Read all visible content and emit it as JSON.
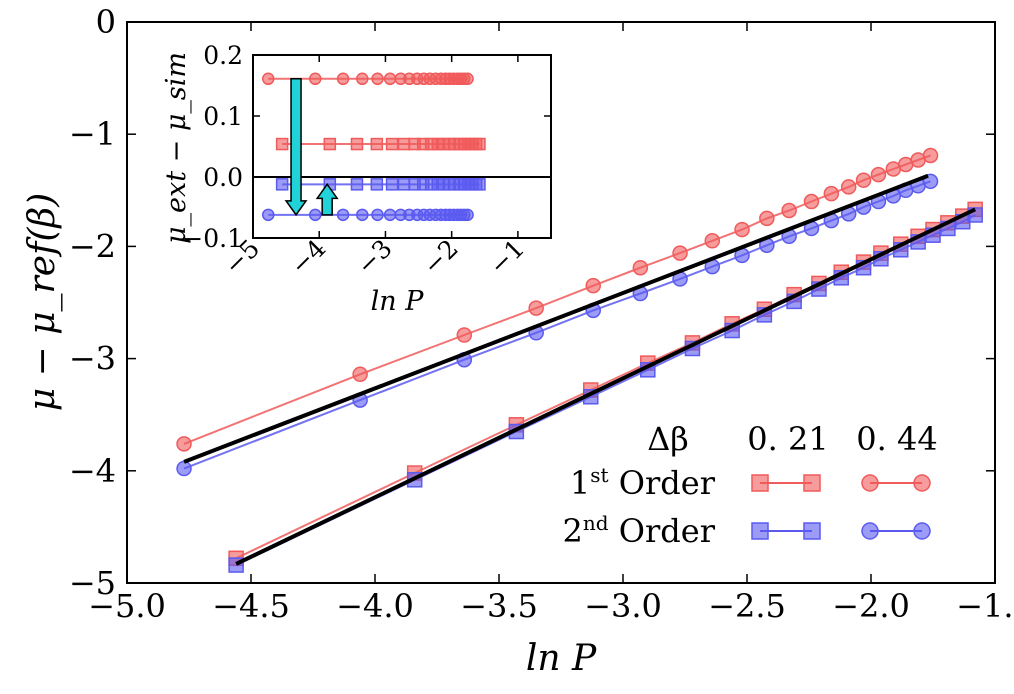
{
  "chart_data": [
    {
      "type": "line",
      "xlabel": "ln P",
      "ylabel": "μ − μ_ref(β)",
      "xlim": [
        -5.0,
        -1.5
      ],
      "ylim": [
        -5,
        0
      ],
      "xticks": [
        "−5.0",
        "−4.5",
        "−4.0",
        "−3.5",
        "−3.0",
        "−2.5",
        "−2.0",
        "−1.5"
      ],
      "yticks": [
        "0",
        "−1",
        "−2",
        "−3",
        "−4",
        "−5"
      ],
      "legend": {
        "position": "lower-right",
        "header": "Δβ",
        "columns": [
          "0. 21",
          "0. 44"
        ],
        "rows": [
          {
            "label_base": "1",
            "label_sup": "st",
            "label_tail": " Order",
            "color": "#f05a5a"
          },
          {
            "label_base": "2",
            "label_sup": "nd",
            "label_tail": " Order",
            "color": "#5a5af0"
          }
        ]
      },
      "series": [
        {
          "order": "1st",
          "dbeta": "0. 21",
          "marker": "square",
          "color": "#f05a5a",
          "x": [
            -4.56,
            -3.84,
            -3.43,
            -3.13,
            -2.9,
            -2.72,
            -2.56,
            -2.43,
            -2.31,
            -2.21,
            -2.12,
            -2.03,
            -1.96,
            -1.88,
            -1.81,
            -1.75,
            -1.69,
            -1.63,
            -1.58
          ],
          "y": [
            -4.78,
            -4.02,
            -3.59,
            -3.28,
            -3.04,
            -2.86,
            -2.69,
            -2.56,
            -2.43,
            -2.33,
            -2.23,
            -2.14,
            -2.06,
            -1.98,
            -1.91,
            -1.85,
            -1.79,
            -1.73,
            -1.67
          ]
        },
        {
          "order": "2nd",
          "dbeta": "0. 21",
          "marker": "square",
          "color": "#5a5af0",
          "x": [
            -4.56,
            -3.84,
            -3.43,
            -3.13,
            -2.9,
            -2.72,
            -2.56,
            -2.43,
            -2.31,
            -2.21,
            -2.12,
            -2.03,
            -1.96,
            -1.88,
            -1.81,
            -1.75,
            -1.69,
            -1.63,
            -1.58
          ],
          "y": [
            -4.84,
            -4.08,
            -3.65,
            -3.34,
            -3.1,
            -2.91,
            -2.75,
            -2.61,
            -2.49,
            -2.38,
            -2.28,
            -2.19,
            -2.11,
            -2.03,
            -1.96,
            -1.9,
            -1.84,
            -1.78,
            -1.72
          ]
        },
        {
          "order": "1st",
          "dbeta": "0. 44",
          "marker": "circle",
          "color": "#f05a5a",
          "x": [
            -4.77,
            -4.06,
            -3.64,
            -3.35,
            -3.12,
            -2.93,
            -2.77,
            -2.64,
            -2.52,
            -2.42,
            -2.33,
            -2.24,
            -2.16,
            -2.09,
            -2.03,
            -1.97,
            -1.91,
            -1.86,
            -1.81,
            -1.76
          ],
          "y": [
            -3.76,
            -3.14,
            -2.79,
            -2.55,
            -2.35,
            -2.19,
            -2.06,
            -1.95,
            -1.85,
            -1.75,
            -1.68,
            -1.6,
            -1.53,
            -1.47,
            -1.41,
            -1.36,
            -1.31,
            -1.27,
            -1.23,
            -1.19
          ]
        },
        {
          "order": "2nd",
          "dbeta": "0. 44",
          "marker": "circle",
          "color": "#5a5af0",
          "x": [
            -4.77,
            -4.06,
            -3.64,
            -3.35,
            -3.12,
            -2.93,
            -2.77,
            -2.64,
            -2.52,
            -2.42,
            -2.33,
            -2.24,
            -2.16,
            -2.09,
            -2.03,
            -1.97,
            -1.91,
            -1.86,
            -1.81,
            -1.76
          ],
          "y": [
            -3.98,
            -3.37,
            -3.01,
            -2.77,
            -2.57,
            -2.42,
            -2.29,
            -2.18,
            -2.08,
            -1.99,
            -1.91,
            -1.84,
            -1.77,
            -1.71,
            -1.65,
            -1.6,
            -1.55,
            -1.5,
            -1.46,
            -1.42
          ]
        }
      ],
      "extrapolations": [
        {
          "x": [
            -4.77,
            -1.77
          ],
          "y": [
            -3.92,
            -1.37
          ],
          "color": "#000000"
        },
        {
          "x": [
            -4.56,
            -1.58
          ],
          "y": [
            -4.83,
            -1.67
          ],
          "color": "#000000"
        }
      ]
    },
    {
      "type": "line",
      "inset": true,
      "xlabel": "ln P",
      "ylabel": "μ_ext − μ_sim",
      "xlim": [
        -5,
        -0.5
      ],
      "ylim": [
        -0.1,
        0.2
      ],
      "xticks": [
        "−5",
        "−4",
        "−3",
        "−2",
        "−1"
      ],
      "yticks": [
        "0.2",
        "0.1",
        "0.0",
        "−0.1"
      ],
      "zero_line": true,
      "series": [
        {
          "order": "1st",
          "dbeta": "0. 44",
          "marker": "circle",
          "color": "#f05a5a",
          "value": 0.161,
          "x": [
            -4.77,
            -4.06,
            -3.64,
            -3.35,
            -3.12,
            -2.93,
            -2.77,
            -2.64,
            -2.52,
            -2.42,
            -2.33,
            -2.24,
            -2.16,
            -2.09,
            -2.03,
            -1.97,
            -1.91,
            -1.86,
            -1.81,
            -1.76
          ]
        },
        {
          "order": "1st",
          "dbeta": "0. 21",
          "marker": "square",
          "color": "#f05a5a",
          "value": 0.054,
          "x": [
            -4.56,
            -3.84,
            -3.43,
            -3.13,
            -2.9,
            -2.72,
            -2.56,
            -2.43,
            -2.31,
            -2.21,
            -2.12,
            -2.03,
            -1.96,
            -1.88,
            -1.81,
            -1.75,
            -1.69,
            -1.63,
            -1.58
          ]
        },
        {
          "order": "2nd",
          "dbeta": "0. 21",
          "marker": "square",
          "color": "#5a5af0",
          "value": -0.012,
          "x": [
            -4.56,
            -3.84,
            -3.43,
            -3.13,
            -2.9,
            -2.72,
            -2.56,
            -2.43,
            -2.31,
            -2.21,
            -2.12,
            -2.03,
            -1.96,
            -1.88,
            -1.81,
            -1.75,
            -1.69,
            -1.63,
            -1.58
          ]
        },
        {
          "order": "2nd",
          "dbeta": "0. 44",
          "marker": "circle",
          "color": "#5a5af0",
          "value": -0.062,
          "x": [
            -4.77,
            -4.06,
            -3.64,
            -3.35,
            -3.12,
            -2.93,
            -2.77,
            -2.64,
            -2.52,
            -2.42,
            -2.33,
            -2.24,
            -2.16,
            -2.09,
            -2.03,
            -1.97,
            -1.91,
            -1.86,
            -1.81,
            -1.76
          ]
        }
      ],
      "arrows": [
        {
          "x": -4.35,
          "from": 0.161,
          "to": -0.062,
          "color": "#21d2d8"
        },
        {
          "x": -3.88,
          "from": -0.062,
          "to": -0.012,
          "color": "#21d2d8"
        }
      ]
    }
  ]
}
